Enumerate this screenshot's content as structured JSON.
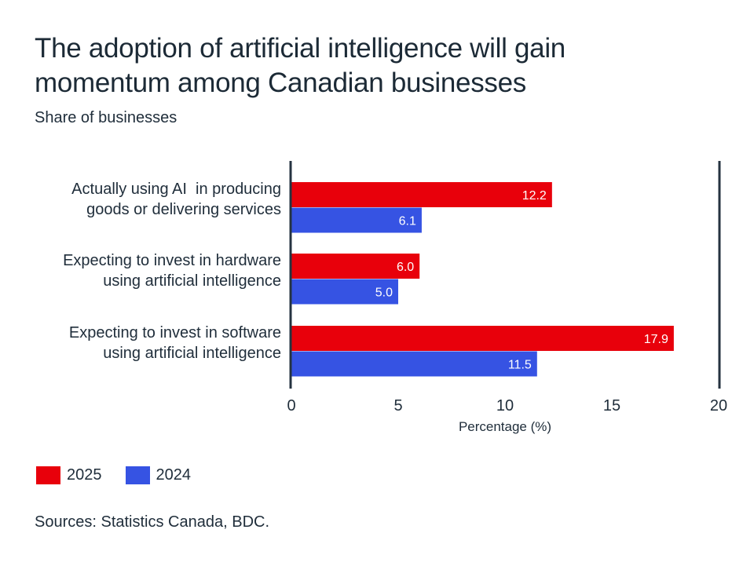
{
  "chart_data": {
    "type": "bar",
    "orientation": "horizontal",
    "title": "The adoption of artificial intelligence will gain momentum among Canadian businesses",
    "subtitle": "Share of businesses",
    "xlabel": "Percentage (%)",
    "ylabel": "",
    "xlim": [
      0,
      20
    ],
    "xticks": [
      0,
      5,
      10,
      15,
      20
    ],
    "grid": false,
    "categories": [
      "Actually using AI  in producing\ngoods or delivering services",
      "Expecting to invest in hardware\nusing artificial intelligence",
      "Expecting to invest in software\nusing artificial intelligence"
    ],
    "series": [
      {
        "name": "2025",
        "color": "#e8000b",
        "values": [
          12.2,
          6.0,
          17.9
        ],
        "labels": [
          "12.2",
          "6.0",
          "17.9"
        ]
      },
      {
        "name": "2024",
        "color": "#3653e3",
        "values": [
          6.1,
          5.0,
          11.5
        ],
        "labels": [
          "6.1",
          "5.0",
          "11.5"
        ]
      }
    ],
    "legend_position": "bottom-left",
    "source": "Sources: Statistics Canada, BDC."
  },
  "legend": [
    {
      "label": "2025",
      "color": "#e8000b"
    },
    {
      "label": "2024",
      "color": "#3653e3"
    }
  ],
  "axis_color": "#253340"
}
